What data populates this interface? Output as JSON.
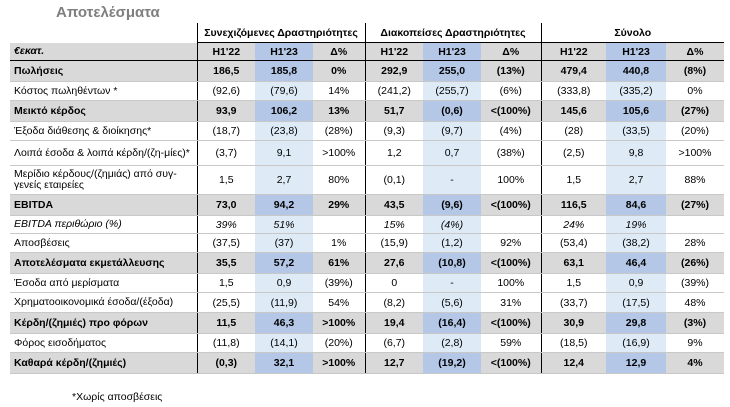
{
  "title": "Αποτελέσματα",
  "groups": [
    "Συνεχιζόμενες Δραστηριότητες",
    "Διακοπείσες Δραστηριότητες",
    "Σύνολο"
  ],
  "header": {
    "label": "€εκατ.",
    "cols": [
      "H1'22",
      "H1'23",
      "Δ%",
      "H1'22",
      "H1'23",
      "Δ%",
      "H1'22",
      "H1'23",
      "Δ%"
    ]
  },
  "rows": [
    {
      "label": "Πωλήσεις",
      "bold": true,
      "vals": [
        "186,5",
        "185,8",
        "0%",
        "292,9",
        "255,0",
        "(13%)",
        "479,4",
        "440,8",
        "(8%)"
      ]
    },
    {
      "label": "Κόστος πωληθέντων *",
      "vals": [
        "(92,6)",
        "(79,6)",
        "14%",
        "(241,2)",
        "(255,7)",
        "(6%)",
        "(333,8)",
        "(335,2)",
        "0%"
      ]
    },
    {
      "label": "Μεικτό κέρδος",
      "bold": true,
      "vals": [
        "93,9",
        "106,2",
        "13%",
        "51,7",
        "(0,6)",
        "<(100%)",
        "145,6",
        "105,6",
        "(27%)"
      ]
    },
    {
      "label": "Έξοδα διάθεσης & διοίκησης*",
      "vals": [
        "(18,7)",
        "(23,8)",
        "(28%)",
        "(9,3)",
        "(9,7)",
        "(4%)",
        "(28)",
        "(33,5)",
        "(20%)"
      ]
    },
    {
      "label": "Λοιπά έσοδα & λοιπά κέρδη/(ζη-μίες)*",
      "vals": [
        "(3,7)",
        "9,1",
        ">100%",
        "1,2",
        "0,7",
        "(38%)",
        "(2,5)",
        "9,8",
        ">100%"
      ]
    },
    {
      "label": "Μερίδιο κέρδους/(ζημιάς) από συγ-γενείς εταιρείες",
      "vals": [
        "1,5",
        "2,7",
        "80%",
        "(0,1)",
        "-",
        "100%",
        "1,5",
        "2,7",
        "88%"
      ]
    },
    {
      "label": "EBITDA",
      "bold": true,
      "vals": [
        "73,0",
        "94,2",
        "29%",
        "43,5",
        "(9,6)",
        "<(100%)",
        "116,5",
        "84,6",
        "(27%)"
      ]
    },
    {
      "label": "EBITDA περιθώριο (%)",
      "italic": true,
      "vals": [
        "39%",
        "51%",
        "",
        "15%",
        "(4%)",
        "",
        "24%",
        "19%",
        ""
      ]
    },
    {
      "label": "Αποσβέσεις",
      "vals": [
        "(37,5)",
        "(37)",
        "1%",
        "(15,9)",
        "(1,2)",
        "92%",
        "(53,4)",
        "(38,2)",
        "28%"
      ]
    },
    {
      "label": "Αποτελέσματα εκμετάλλευσης",
      "bold": true,
      "vals": [
        "35,5",
        "57,2",
        "61%",
        "27,6",
        "(10,8)",
        "<(100%)",
        "63,1",
        "46,4",
        "(26%)"
      ]
    },
    {
      "label": "Έσοδα από μερίσματα",
      "vals": [
        "1,5",
        "0,9",
        "(39%)",
        "0",
        "-",
        "100%",
        "1,5",
        "0,9",
        "(39%)"
      ]
    },
    {
      "label": "Χρηματοοικονομικά έσοδα/(έξοδα)",
      "vals": [
        "(25,5)",
        "(11,9)",
        "54%",
        "(8,2)",
        "(5,6)",
        "31%",
        "(33,7)",
        "(17,5)",
        "48%"
      ]
    },
    {
      "label": "Κέρδη/(ζημιές) προ φόρων",
      "bold": true,
      "vals": [
        "11,5",
        "46,3",
        ">100%",
        "19,4",
        "(16,4)",
        "<(100%)",
        "30,9",
        "29,8",
        "(3%)"
      ]
    },
    {
      "label": "Φόρος εισοδήματος",
      "vals": [
        "(11,8)",
        "(14,1)",
        "(20%)",
        "(6,7)",
        "(2,8)",
        "59%",
        "(18,5)",
        "(16,9)",
        "9%"
      ]
    },
    {
      "label": "Καθαρά κέρδη/(ζημιές)",
      "bold": true,
      "vals": [
        "(0,3)",
        "32,1",
        ">100%",
        "12,7",
        "(19,2)",
        "<(100%)",
        "12,4",
        "12,9",
        "4%"
      ]
    }
  ],
  "footnote": "*Χωρίς αποσβέσεις"
}
